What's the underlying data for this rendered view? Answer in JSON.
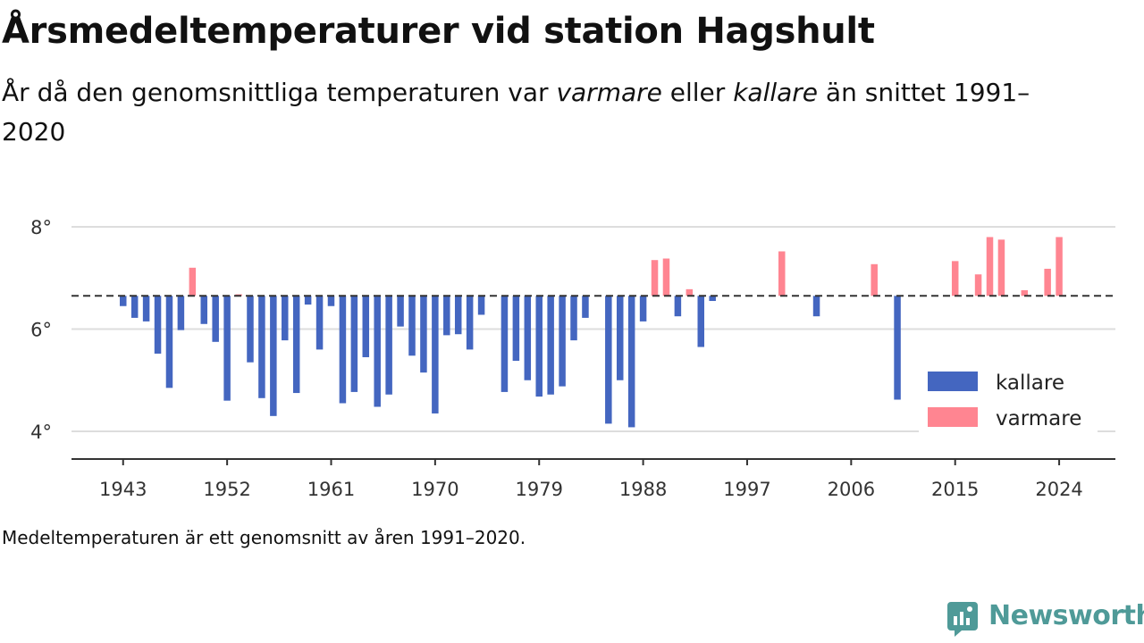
{
  "title": "Årsmedeltemperaturer vid station Hagshult",
  "subtitle": {
    "part1": "År då den genomsnittliga temperaturen var ",
    "warm_word": "varmare",
    "part2": " eller ",
    "cold_word": "kallare",
    "part3": " än snittet 1991–2020"
  },
  "footnote": "Medeltemperaturen är ett genomsnitt av åren 1991–2020.",
  "brand": "Newsworthy",
  "colors": {
    "colder": "#4466c0",
    "warmer": "#ff8591",
    "baseline": "#333333",
    "grid": "#dddddd",
    "brand": "#4f9a98"
  },
  "chart_data": {
    "type": "bar",
    "baseline": 6.65,
    "ylim": [
      3.5,
      8.8
    ],
    "y_ticks": [
      4,
      6,
      8
    ],
    "y_tick_labels": [
      "4°",
      "6°",
      "8°"
    ],
    "x_ticks": [
      1943,
      1952,
      1961,
      1970,
      1979,
      1988,
      1997,
      2006,
      2015,
      2024
    ],
    "xlim": [
      1938.6,
      2028.4
    ],
    "legend": {
      "position": "bottom-right",
      "entries": [
        {
          "name": "kallare",
          "color": "#4466c0"
        },
        {
          "name": "varmare",
          "color": "#ff8591"
        }
      ]
    },
    "series": [
      {
        "name": "kallare",
        "color": "#4466c0",
        "points": [
          [
            1943,
            6.45
          ],
          [
            1944,
            6.22
          ],
          [
            1945,
            6.15
          ],
          [
            1946,
            5.52
          ],
          [
            1947,
            4.85
          ],
          [
            1948,
            5.98
          ],
          [
            1950,
            6.1
          ],
          [
            1951,
            5.75
          ],
          [
            1952,
            4.6
          ],
          [
            1954,
            5.35
          ],
          [
            1955,
            4.65
          ],
          [
            1956,
            4.3
          ],
          [
            1957,
            5.78
          ],
          [
            1958,
            4.75
          ],
          [
            1959,
            6.48
          ],
          [
            1960,
            5.6
          ],
          [
            1961,
            6.45
          ],
          [
            1962,
            4.55
          ],
          [
            1963,
            4.77
          ],
          [
            1964,
            5.45
          ],
          [
            1965,
            4.48
          ],
          [
            1966,
            4.72
          ],
          [
            1967,
            6.05
          ],
          [
            1968,
            5.48
          ],
          [
            1969,
            5.15
          ],
          [
            1970,
            4.35
          ],
          [
            1971,
            5.88
          ],
          [
            1972,
            5.9
          ],
          [
            1973,
            5.6
          ],
          [
            1974,
            6.28
          ],
          [
            1976,
            4.77
          ],
          [
            1977,
            5.38
          ],
          [
            1978,
            5.0
          ],
          [
            1979,
            4.68
          ],
          [
            1980,
            4.72
          ],
          [
            1981,
            4.88
          ],
          [
            1982,
            5.78
          ],
          [
            1983,
            6.22
          ],
          [
            1985,
            4.15
          ],
          [
            1986,
            5.0
          ],
          [
            1987,
            4.08
          ],
          [
            1988,
            6.15
          ],
          [
            1991,
            6.25
          ],
          [
            1993,
            5.65
          ],
          [
            1994,
            6.55
          ],
          [
            2003,
            6.25
          ],
          [
            2010,
            4.62
          ]
        ]
      },
      {
        "name": "varmare",
        "color": "#ff8591",
        "points": [
          [
            1949,
            7.2
          ],
          [
            1953,
            6.68
          ],
          [
            1989,
            7.35
          ],
          [
            1990,
            7.38
          ],
          [
            1992,
            6.78
          ],
          [
            2000,
            7.52
          ],
          [
            2008,
            7.27
          ],
          [
            2015,
            7.33
          ],
          [
            2017,
            7.07
          ],
          [
            2018,
            7.8
          ],
          [
            2019,
            7.75
          ],
          [
            2021,
            6.76
          ],
          [
            2023,
            7.18
          ],
          [
            2024,
            7.8
          ]
        ]
      }
    ]
  }
}
